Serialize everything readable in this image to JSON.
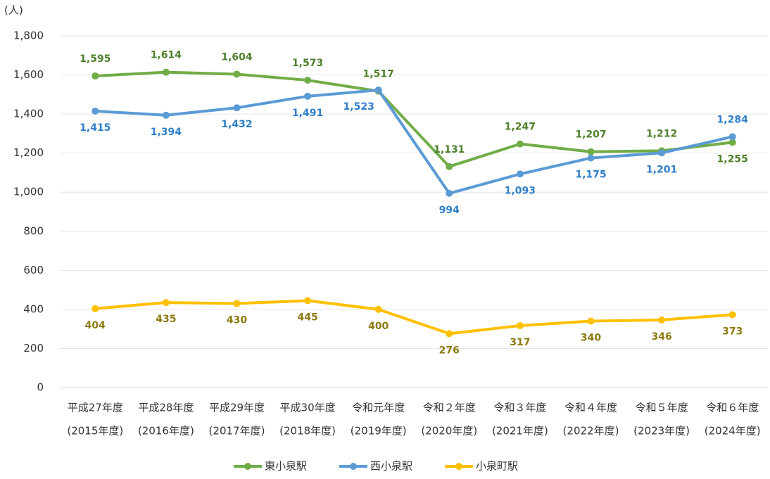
{
  "chart_data": {
    "type": "line",
    "y_label": "(人)",
    "categories": [
      [
        "平成27年度",
        "(2015年度)"
      ],
      [
        "平成28年度",
        "(2016年度)"
      ],
      [
        "平成29年度",
        "(2017年度)"
      ],
      [
        "平成30年度",
        "(2018年度)"
      ],
      [
        "令和元年度",
        "(2019年度)"
      ],
      [
        "令和２年度",
        "(2020年度)"
      ],
      [
        "令和３年度",
        "(2021年度)"
      ],
      [
        "令和４年度",
        "(2022年度)"
      ],
      [
        "令和５年度",
        "(2023年度)"
      ],
      [
        "令和６年度",
        "(2024年度)"
      ]
    ],
    "series": [
      {
        "name": "東小泉駅",
        "color": "#70ad47",
        "label_color": "#4d7f2a",
        "values": [
          1595,
          1614,
          1604,
          1573,
          1517,
          1131,
          1247,
          1207,
          1212,
          1255
        ],
        "value_labels": [
          "1,595",
          "1,614",
          "1,604",
          "1,573",
          "1,517",
          "1,131",
          "1,247",
          "1,207",
          "1,212",
          "1,255"
        ]
      },
      {
        "name": "西小泉駅",
        "color": "#5b9bd5",
        "label_color": "#2e7fc9",
        "values": [
          1415,
          1394,
          1432,
          1491,
          1523,
          994,
          1093,
          1175,
          1201,
          1284
        ],
        "value_labels": [
          "1,415",
          "1,394",
          "1,432",
          "1,491",
          "1,523",
          "994",
          "1,093",
          "1,175",
          "1,201",
          "1,284"
        ]
      },
      {
        "name": "小泉町駅",
        "color": "#ffc000",
        "label_color": "#8c7a10",
        "values": [
          404,
          435,
          430,
          445,
          400,
          276,
          317,
          340,
          346,
          373
        ],
        "value_labels": [
          "404",
          "435",
          "430",
          "445",
          "400",
          "276",
          "317",
          "340",
          "346",
          "373"
        ]
      }
    ],
    "ylim": [
      0,
      1800
    ],
    "yticks": [
      0,
      200,
      400,
      600,
      800,
      {
        "value": 1000,
        "label": "1,000"
      },
      {
        "value": 1200,
        "label": "1,200"
      },
      {
        "value": 1400,
        "label": "1,400"
      },
      {
        "value": 1600,
        "label": "1,600"
      },
      {
        "value": 1800,
        "label": "1,800"
      }
    ],
    "grid": true,
    "legend": "bottom"
  }
}
